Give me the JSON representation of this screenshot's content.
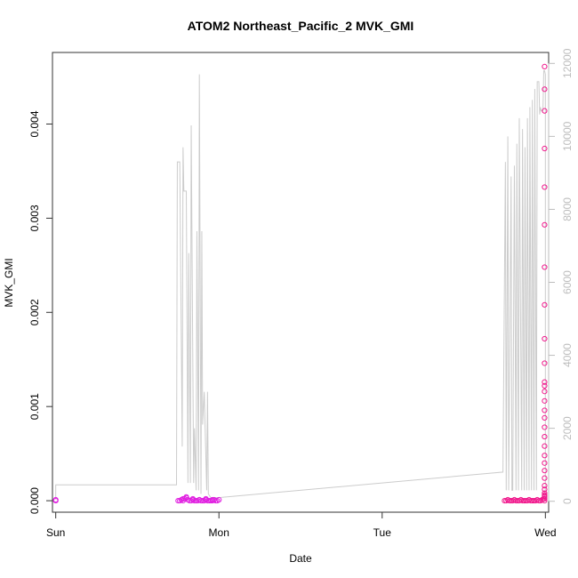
{
  "chart_data": {
    "type": "scatter",
    "title": "ATOM2 Northeast_Pacific_2 MVK_GMI",
    "xlabel": "Date",
    "ylabel": "MVK_GMI",
    "x_ticks": [
      "Sun",
      "Mon",
      "Tue",
      "Wed"
    ],
    "xlim": [
      -0.02,
      3.02
    ],
    "ylim": [
      -0.000122,
      0.00476
    ],
    "y_ticks": [
      0.0,
      0.001,
      0.002,
      0.003,
      0.004
    ],
    "y_tick_labels": [
      "0.000",
      "0.001",
      "0.002",
      "0.003",
      "0.004"
    ],
    "y2lim": [
      -300,
      12300
    ],
    "y2_ticks": [
      0,
      2000,
      4000,
      6000,
      8000,
      10000,
      12000
    ],
    "y2_tick_labels": [
      "0",
      "2000",
      "4000",
      "6000",
      "8000",
      "10000",
      "12000"
    ],
    "grid": false,
    "colors": {
      "points_sun": "#e020e0",
      "points_mon": "#e020e0",
      "points_wed": "#f0188c",
      "line": "#cccccc",
      "right_axis": "#bdbdbd"
    },
    "series": [
      {
        "type": "points",
        "color": "#e020e0",
        "x": [
          0.0,
          0.0,
          0.75,
          0.76,
          0.77,
          0.78,
          0.79,
          0.8,
          0.81,
          0.82,
          0.83,
          0.84,
          0.85,
          0.86,
          0.87,
          0.88,
          0.89,
          0.9,
          0.91,
          0.92,
          0.93,
          0.94,
          0.95,
          0.96,
          0.97,
          0.98,
          0.99,
          1.0,
          0.78,
          0.8,
          0.84,
          0.88,
          0.92,
          0.96
        ],
        "y": [
          0.0,
          1e-05,
          0.0,
          0.0,
          1e-05,
          0.0,
          2e-05,
          3e-05,
          1e-05,
          0.0,
          0.0,
          1e-05,
          0.0,
          0.0,
          0.0,
          1e-05,
          0.0,
          0.0,
          0.0,
          1e-05,
          0.0,
          0.0,
          0.0,
          0.0,
          1e-05,
          0.0,
          0.0,
          1e-05,
          2e-05,
          4e-05,
          2e-05,
          1e-05,
          2e-05,
          1e-05
        ]
      },
      {
        "type": "points",
        "color": "#f0188c",
        "x": [
          2.75,
          2.76,
          2.77,
          2.78,
          2.79,
          2.8,
          2.81,
          2.82,
          2.83,
          2.84,
          2.85,
          2.86,
          2.87,
          2.88,
          2.89,
          2.9,
          2.91,
          2.92,
          2.93,
          2.94,
          2.95,
          2.96,
          2.97,
          2.98,
          2.99,
          2.995,
          2.995,
          2.995,
          2.995,
          2.995,
          2.995,
          2.995,
          2.995,
          2.995,
          2.995,
          2.995,
          2.995,
          2.995,
          2.995,
          2.995,
          2.995,
          2.995,
          2.995,
          2.995,
          2.995,
          2.995,
          2.995,
          2.995,
          2.995,
          2.995,
          2.995,
          2.995,
          2.995,
          2.995,
          2.995,
          2.995
        ],
        "y": [
          0.0,
          0.0,
          1e-05,
          0.0,
          0.0,
          0.0,
          1e-05,
          0.0,
          0.0,
          0.0,
          1e-05,
          0.0,
          0.0,
          0.0,
          0.0,
          1e-05,
          0.0,
          0.0,
          0.0,
          0.0,
          1e-05,
          0.0,
          0.0,
          1e-05,
          2e-05,
          5e-05,
          8e-05,
          0.00012,
          0.00024,
          0.0004,
          0.00048,
          0.00058,
          0.00068,
          0.00078,
          0.00088,
          0.00096,
          0.00106,
          0.00116,
          0.00122,
          0.00126,
          0.00146,
          0.00172,
          0.00208,
          0.00248,
          0.00293,
          0.00333,
          0.00374,
          0.00414,
          0.00437,
          0.00461,
          0.0,
          2e-05,
          4e-05,
          6e-05,
          0.00016,
          0.00032
        ]
      },
      {
        "type": "line",
        "axis": "right",
        "color": "#cccccc",
        "x": [
          0.0,
          0.0,
          0.74,
          0.745,
          0.76,
          0.775,
          0.78,
          0.785,
          0.8,
          0.81,
          0.815,
          0.825,
          0.83,
          0.845,
          0.85,
          0.86,
          0.865,
          0.875,
          0.88,
          0.89,
          0.895,
          0.9,
          0.91,
          0.925,
          0.93,
          0.935,
          0.95,
          0.955,
          0.965,
          0.97,
          0.98,
          0.985,
          0.99,
          1.0,
          1.0,
          1.0,
          2.74,
          2.74,
          2.755,
          2.76,
          2.77,
          2.775,
          2.79,
          2.795,
          2.8,
          2.81,
          2.82,
          2.825,
          2.835,
          2.84,
          2.855,
          2.86,
          2.87,
          2.875,
          2.885,
          2.89,
          2.9,
          2.905,
          2.915,
          2.92,
          2.93,
          2.935,
          2.945,
          2.95,
          2.96,
          2.965,
          2.97,
          2.975,
          2.985,
          2.99,
          2.995,
          3.0,
          3.0
        ],
        "y": [
          50,
          450,
          450,
          9300,
          9300,
          1500,
          9700,
          8500,
          8500,
          500,
          6800,
          500,
          10300,
          500,
          2000,
          300,
          7400,
          300,
          11700,
          200,
          7400,
          2100,
          3000,
          300,
          3000,
          200,
          100,
          100,
          100,
          100,
          100,
          100,
          100,
          100,
          100,
          100,
          800,
          800,
          9300,
          300,
          10000,
          300,
          8900,
          300,
          300,
          9200,
          300,
          9800,
          300,
          10500,
          300,
          10200,
          300,
          9700,
          300,
          10500,
          300,
          10800,
          300,
          11000,
          300,
          11300,
          300,
          11500,
          11500,
          10600,
          10800,
          10700,
          10700,
          11800,
          11800,
          11700,
          0
        ]
      }
    ]
  }
}
